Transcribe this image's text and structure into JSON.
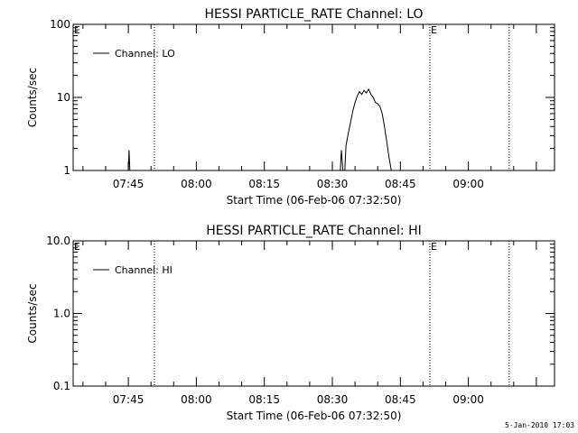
{
  "footer": {
    "date_stamp": "5-Jan-2010 17:03"
  },
  "chart_data": [
    {
      "type": "line",
      "title": "HESSI PARTICLE_RATE Channel: LO",
      "xlabel": "Start Time (06-Feb-06 07:32:50)",
      "ylabel": "Counts/sec",
      "yscale": "log",
      "ylim": [
        1,
        100
      ],
      "xlim": [
        "07:32:50",
        "09:19:00"
      ],
      "x_ticks": [
        "07:45",
        "08:00",
        "08:15",
        "08:30",
        "08:45",
        "09:00"
      ],
      "y_ticks": [
        "1",
        "10",
        "100"
      ],
      "grid": false,
      "legend_position": "top-left",
      "markers": [
        {
          "label": "",
          "time": "07:50:45",
          "style": "dotted"
        },
        {
          "label": "E",
          "time": "08:51:30",
          "style": "dotted"
        },
        {
          "label": "",
          "time": "09:09:00",
          "style": "dotted"
        },
        {
          "label": "E",
          "time": "07:32:50",
          "style": "none"
        }
      ],
      "series": [
        {
          "name": "Channel: LO",
          "color": "#000000",
          "segments": [
            [
              [
                "07:45:00",
                1
              ],
              [
                "07:45:10",
                1.9
              ],
              [
                "07:45:20",
                1
              ],
              [
                "07:45:30",
                1
              ]
            ],
            [
              [
                "08:31:45",
                1
              ],
              [
                "08:32:00",
                1.9
              ],
              [
                "08:32:20",
                1
              ],
              [
                "08:32:40",
                1
              ]
            ],
            [
              [
                "08:32:45",
                1
              ],
              [
                "08:33:00",
                2.2
              ],
              [
                "08:33:30",
                3.2
              ],
              [
                "08:34:00",
                4.5
              ],
              [
                "08:34:30",
                6.5
              ],
              [
                "08:35:00",
                8.5
              ],
              [
                "08:35:30",
                10.5
              ],
              [
                "08:36:00",
                12
              ],
              [
                "08:36:30",
                11
              ],
              [
                "08:37:00",
                12.5
              ],
              [
                "08:37:30",
                11.5
              ],
              [
                "08:38:00",
                13
              ],
              [
                "08:38:30",
                11
              ],
              [
                "08:39:00",
                10
              ],
              [
                "08:39:30",
                8.5
              ],
              [
                "08:40:00",
                8.2
              ],
              [
                "08:40:30",
                7.5
              ],
              [
                "08:41:00",
                6
              ],
              [
                "08:41:30",
                4
              ],
              [
                "08:42:00",
                2.5
              ],
              [
                "08:42:30",
                1.5
              ],
              [
                "08:43:00",
                1
              ]
            ]
          ]
        }
      ]
    },
    {
      "type": "line",
      "title": "HESSI PARTICLE_RATE Channel: HI",
      "xlabel": "Start Time (06-Feb-06 07:32:50)",
      "ylabel": "Counts/sec",
      "yscale": "log",
      "ylim": [
        0.1,
        10
      ],
      "xlim": [
        "07:32:50",
        "09:19:00"
      ],
      "x_ticks": [
        "07:45",
        "08:00",
        "08:15",
        "08:30",
        "08:45",
        "09:00"
      ],
      "y_ticks": [
        "0.1",
        "1.0",
        "10.0"
      ],
      "grid": false,
      "legend_position": "top-left",
      "markers": [
        {
          "label": "",
          "time": "07:50:45",
          "style": "dotted"
        },
        {
          "label": "E",
          "time": "08:51:30",
          "style": "dotted"
        },
        {
          "label": "",
          "time": "09:09:00",
          "style": "dotted"
        },
        {
          "label": "E",
          "time": "07:32:50",
          "style": "none"
        }
      ],
      "series": [
        {
          "name": "Channel: HI",
          "color": "#000000",
          "segments": []
        }
      ]
    }
  ]
}
